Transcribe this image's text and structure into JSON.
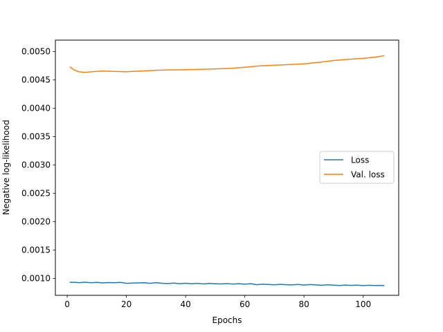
{
  "chart_data": {
    "type": "line",
    "title": "",
    "xlabel": "Epochs",
    "ylabel": "Negative log-likelihood",
    "xlim": [
      -4,
      112
    ],
    "ylim": [
      0.0007,
      0.0052
    ],
    "xticks": [
      0,
      20,
      40,
      60,
      80,
      100
    ],
    "xtick_labels": [
      "0",
      "20",
      "40",
      "60",
      "80",
      "100"
    ],
    "yticks": [
      0.001,
      0.0015,
      0.002,
      0.0025,
      0.003,
      0.0035,
      0.004,
      0.0045,
      0.005
    ],
    "ytick_labels": [
      "0.0010",
      "0.0015",
      "0.0020",
      "0.0025",
      "0.0030",
      "0.0035",
      "0.0040",
      "0.0045",
      "0.0050"
    ],
    "grid": false,
    "legend_position": "center-right",
    "series": [
      {
        "name": "Loss",
        "color": "#1f77b4",
        "points": [
          [
            1,
            0.00093
          ],
          [
            3,
            0.000928
          ],
          [
            4,
            0.000922
          ],
          [
            6,
            0.000932
          ],
          [
            8,
            0.000922
          ],
          [
            10,
            0.000928
          ],
          [
            12,
            0.00092
          ],
          [
            14,
            0.000926
          ],
          [
            16,
            0.000922
          ],
          [
            18,
            0.000928
          ],
          [
            20,
            0.000912
          ],
          [
            22,
            0.000916
          ],
          [
            24,
            0.00092
          ],
          [
            26,
            0.000922
          ],
          [
            28,
            0.000912
          ],
          [
            30,
            0.000924
          ],
          [
            32,
            0.000914
          ],
          [
            34,
            0.000908
          ],
          [
            36,
            0.000916
          ],
          [
            38,
            0.000906
          ],
          [
            40,
            0.000914
          ],
          [
            42,
            0.000904
          ],
          [
            44,
            0.000912
          ],
          [
            46,
            0.000902
          ],
          [
            48,
            0.00091
          ],
          [
            50,
            0.000904
          ],
          [
            52,
            0.000902
          ],
          [
            54,
            0.000908
          ],
          [
            56,
            0.000898
          ],
          [
            58,
            0.000906
          ],
          [
            60,
            0.000896
          ],
          [
            62,
            0.000906
          ],
          [
            64,
            0.000888
          ],
          [
            66,
            0.000896
          ],
          [
            68,
            0.000892
          ],
          [
            70,
            0.000886
          ],
          [
            72,
            0.000894
          ],
          [
            74,
            0.000888
          ],
          [
            76,
            0.000884
          ],
          [
            78,
            0.000892
          ],
          [
            80,
            0.000882
          ],
          [
            82,
            0.00089
          ],
          [
            84,
            0.000884
          ],
          [
            86,
            0.000878
          ],
          [
            88,
            0.000886
          ],
          [
            90,
            0.00088
          ],
          [
            92,
            0.000874
          ],
          [
            94,
            0.000882
          ],
          [
            96,
            0.000876
          ],
          [
            98,
            0.00088
          ],
          [
            100,
            0.000872
          ],
          [
            102,
            0.000878
          ],
          [
            104,
            0.000874
          ],
          [
            106,
            0.000876
          ],
          [
            107,
            0.000872
          ]
        ]
      },
      {
        "name": "Val. loss",
        "color": "#ff7f0e",
        "points": [
          [
            1,
            0.004725
          ],
          [
            2,
            0.004685
          ],
          [
            3,
            0.00466
          ],
          [
            4,
            0.004642
          ],
          [
            6,
            0.004632
          ],
          [
            8,
            0.00464
          ],
          [
            10,
            0.00465
          ],
          [
            12,
            0.004655
          ],
          [
            14,
            0.004652
          ],
          [
            16,
            0.004648
          ],
          [
            18,
            0.004645
          ],
          [
            20,
            0.004642
          ],
          [
            22,
            0.004648
          ],
          [
            25,
            0.004655
          ],
          [
            30,
            0.004668
          ],
          [
            35,
            0.004675
          ],
          [
            40,
            0.004678
          ],
          [
            45,
            0.004685
          ],
          [
            50,
            0.004692
          ],
          [
            55,
            0.004702
          ],
          [
            60,
            0.004722
          ],
          [
            65,
            0.004745
          ],
          [
            70,
            0.004758
          ],
          [
            75,
            0.004768
          ],
          [
            80,
            0.004782
          ],
          [
            85,
            0.004808
          ],
          [
            90,
            0.00484
          ],
          [
            95,
            0.004862
          ],
          [
            100,
            0.004878
          ],
          [
            104,
            0.0049
          ],
          [
            107,
            0.004925
          ]
        ]
      }
    ]
  }
}
